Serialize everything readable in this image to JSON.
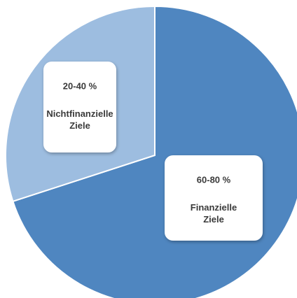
{
  "chart_data": {
    "type": "pie",
    "categories": [
      "Finanzielle Ziele",
      "Nichtfinanzielle Ziele"
    ],
    "values": [
      70,
      30
    ],
    "range_labels": [
      "60-80 %",
      "20-40 %"
    ],
    "colors": [
      "#4f86c0",
      "#9dbde0"
    ]
  }
}
